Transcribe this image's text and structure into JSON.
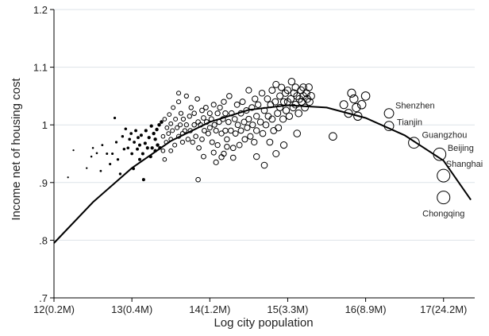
{
  "chart_data": {
    "type": "scatter",
    "title": "",
    "xlabel": "Log city population",
    "ylabel": "Income net of housing cost",
    "xlim": [
      12,
      17.4
    ],
    "ylim": [
      0.7,
      1.2
    ],
    "x_ticks": [
      {
        "value": 12,
        "label": "12(0.2M)"
      },
      {
        "value": 13,
        "label": "13(0.4M)"
      },
      {
        "value": 14,
        "label": "14(1.2M)"
      },
      {
        "value": 15,
        "label": "15(3.3M)"
      },
      {
        "value": 16,
        "label": "16(8.9M)"
      },
      {
        "value": 17,
        "label": "17(24.2M)"
      }
    ],
    "y_ticks": [
      {
        "value": 0.7,
        "label": ".7"
      },
      {
        "value": 0.8,
        "label": ".8"
      },
      {
        "value": 0.9,
        "label": ".9"
      },
      {
        "value": 1.0,
        "label": "1"
      },
      {
        "value": 1.1,
        "label": "1.1"
      },
      {
        "value": 1.2,
        "label": "1.2"
      }
    ],
    "grid": "horizontal",
    "marker_size": "circle size proportional to city population",
    "fit": {
      "type": "quadratic",
      "x_range": [
        12,
        17.35
      ],
      "points": [
        [
          12.0,
          0.795
        ],
        [
          12.5,
          0.866
        ],
        [
          13.0,
          0.925
        ],
        [
          13.5,
          0.972
        ],
        [
          14.0,
          1.005
        ],
        [
          14.5,
          1.026
        ],
        [
          15.0,
          1.034
        ],
        [
          15.5,
          1.03
        ],
        [
          16.0,
          1.012
        ],
        [
          16.5,
          0.982
        ],
        [
          17.0,
          0.938
        ],
        [
          17.35,
          0.87
        ]
      ]
    },
    "labeled_cities": [
      {
        "name": "Shenzhen",
        "x": 16.3,
        "y": 1.02
      },
      {
        "name": "Tianjin",
        "x": 16.3,
        "y": 0.998
      },
      {
        "name": "Guangzhou",
        "x": 16.62,
        "y": 0.969
      },
      {
        "name": "Beijing",
        "x": 16.95,
        "y": 0.949
      },
      {
        "name": "Shanghai",
        "x": 17.0,
        "y": 0.912
      },
      {
        "name": "Chongqing",
        "x": 17.0,
        "y": 0.874
      }
    ],
    "points": [
      [
        12.18,
        0.909
      ],
      [
        12.25,
        0.956
      ],
      [
        12.42,
        0.925
      ],
      [
        12.48,
        0.945
      ],
      [
        12.5,
        0.96
      ],
      [
        12.55,
        0.951
      ],
      [
        12.6,
        0.92
      ],
      [
        12.62,
        0.965
      ],
      [
        12.68,
        0.95
      ],
      [
        12.72,
        0.932
      ],
      [
        12.75,
        0.95
      ],
      [
        12.78,
        1.012
      ],
      [
        12.8,
        0.97
      ],
      [
        12.82,
        0.94
      ],
      [
        12.85,
        0.915
      ],
      [
        12.88,
        0.98
      ],
      [
        12.9,
        0.958
      ],
      [
        12.92,
        0.993
      ],
      [
        12.95,
        0.96
      ],
      [
        12.97,
        0.975
      ],
      [
        12.99,
        0.985
      ],
      [
        13.0,
        0.95
      ],
      [
        13.02,
        0.924
      ],
      [
        13.03,
        0.97
      ],
      [
        13.05,
        0.99
      ],
      [
        13.07,
        0.958
      ],
      [
        13.08,
        0.978
      ],
      [
        13.1,
        0.965
      ],
      [
        13.1,
        0.94
      ],
      [
        13.12,
        0.982
      ],
      [
        13.14,
        0.95
      ],
      [
        13.15,
        0.905
      ],
      [
        13.17,
        0.968
      ],
      [
        13.18,
        0.99
      ],
      [
        13.2,
        0.96
      ],
      [
        13.22,
        0.978
      ],
      [
        13.24,
        0.945
      ],
      [
        13.25,
        0.998
      ],
      [
        13.26,
        0.96
      ],
      [
        13.28,
        0.985
      ],
      [
        13.3,
        0.955
      ],
      [
        13.3,
        0.975
      ],
      [
        13.32,
        0.992
      ],
      [
        13.33,
        0.965
      ],
      [
        13.35,
        1.0
      ],
      [
        13.36,
        0.96
      ],
      [
        13.38,
        1.005
      ],
      [
        13.4,
        0.98
      ],
      [
        13.4,
        0.955
      ],
      [
        13.42,
        1.01
      ],
      [
        13.44,
        0.97
      ],
      [
        13.45,
        0.995
      ],
      [
        13.47,
        0.985
      ],
      [
        13.48,
        1.018
      ],
      [
        13.5,
        0.975
      ],
      [
        13.5,
        1.002
      ],
      [
        13.52,
        0.99
      ],
      [
        13.53,
        1.03
      ],
      [
        13.55,
        0.965
      ],
      [
        13.56,
        1.01
      ],
      [
        13.58,
        0.995
      ],
      [
        13.6,
        1.04
      ],
      [
        13.6,
        0.98
      ],
      [
        13.62,
        1.0
      ],
      [
        13.63,
        1.02
      ],
      [
        13.65,
        0.985
      ],
      [
        13.66,
        1.01
      ],
      [
        13.68,
        0.99
      ],
      [
        13.7,
        1.05
      ],
      [
        13.7,
        1.0
      ],
      [
        13.72,
        0.975
      ],
      [
        13.74,
        1.015
      ],
      [
        13.75,
        0.99
      ],
      [
        13.76,
        1.03
      ],
      [
        13.78,
        0.97
      ],
      [
        13.8,
        1.02
      ],
      [
        13.8,
        1.0
      ],
      [
        13.82,
        0.98
      ],
      [
        13.84,
        1.045
      ],
      [
        13.85,
        1.005
      ],
      [
        13.86,
        0.96
      ],
      [
        13.88,
        1.0
      ],
      [
        13.9,
        1.025
      ],
      [
        13.9,
        0.975
      ],
      [
        13.92,
        1.012
      ],
      [
        13.93,
        0.99
      ],
      [
        13.95,
        1.03
      ],
      [
        13.96,
        1.005
      ],
      [
        13.98,
        0.985
      ],
      [
        14.0,
        1.02
      ],
      [
        14.0,
        0.995
      ],
      [
        14.02,
        1.01
      ],
      [
        14.03,
        0.97
      ],
      [
        14.05,
        1.035
      ],
      [
        14.06,
        1.0
      ],
      [
        14.08,
        0.99
      ],
      [
        14.1,
        1.02
      ],
      [
        14.1,
        0.965
      ],
      [
        14.12,
        1.005
      ],
      [
        14.13,
        1.03
      ],
      [
        14.15,
        0.985
      ],
      [
        14.17,
        1.01
      ],
      [
        14.18,
        1.04
      ],
      [
        14.2,
        0.99
      ],
      [
        14.2,
        1.02
      ],
      [
        14.22,
        0.975
      ],
      [
        14.24,
        1.005
      ],
      [
        14.25,
        1.05
      ],
      [
        14.27,
        0.99
      ],
      [
        14.28,
        1.02
      ],
      [
        14.3,
        0.96
      ],
      [
        14.32,
        1.01
      ],
      [
        14.33,
        0.985
      ],
      [
        14.35,
        1.035
      ],
      [
        14.36,
        1.0
      ],
      [
        14.38,
        0.965
      ],
      [
        14.4,
        1.02
      ],
      [
        14.4,
        0.99
      ],
      [
        14.42,
        1.04
      ],
      [
        14.44,
        1.005
      ],
      [
        14.45,
        0.975
      ],
      [
        14.47,
        1.025
      ],
      [
        14.48,
        0.995
      ],
      [
        14.5,
        1.06
      ],
      [
        14.5,
        1.01
      ],
      [
        14.52,
        0.98
      ],
      [
        14.54,
        1.03
      ],
      [
        14.55,
        1.0
      ],
      [
        14.57,
        0.97
      ],
      [
        14.58,
        1.045
      ],
      [
        14.6,
        1.015
      ],
      [
        14.6,
        0.99
      ],
      [
        13.6,
        1.055
      ],
      [
        13.85,
        0.905
      ],
      [
        14.05,
        0.952
      ],
      [
        14.15,
        0.944
      ],
      [
        14.22,
        0.962
      ],
      [
        14.3,
        0.943
      ],
      [
        13.5,
        0.955
      ],
      [
        13.42,
        0.94
      ],
      [
        13.65,
        0.97
      ],
      [
        13.92,
        0.945
      ],
      [
        14.08,
        0.935
      ],
      [
        14.18,
        0.95
      ],
      [
        14.62,
        1.035
      ],
      [
        14.65,
        1.005
      ],
      [
        14.67,
        1.055
      ],
      [
        14.68,
        0.985
      ],
      [
        14.7,
        1.025
      ],
      [
        14.72,
        1.0
      ],
      [
        14.74,
        1.045
      ],
      [
        14.75,
        1.015
      ],
      [
        14.77,
        0.97
      ],
      [
        14.78,
        1.035
      ],
      [
        14.8,
        1.06
      ],
      [
        14.8,
        1.01
      ],
      [
        14.82,
        0.99
      ],
      [
        14.84,
        1.04
      ],
      [
        14.85,
        1.07
      ],
      [
        14.87,
        1.02
      ],
      [
        14.88,
        0.995
      ],
      [
        14.9,
        1.05
      ],
      [
        14.9,
        1.03
      ],
      [
        14.92,
        1.065
      ],
      [
        14.94,
        1.01
      ],
      [
        14.95,
        1.04
      ],
      [
        14.97,
        1.055
      ],
      [
        14.98,
        1.025
      ],
      [
        15.0,
        1.06
      ],
      [
        15.0,
        1.04
      ],
      [
        15.02,
        1.015
      ],
      [
        15.04,
        1.045
      ],
      [
        15.05,
        1.075
      ],
      [
        15.07,
        1.03
      ],
      [
        15.08,
        1.055
      ],
      [
        15.1,
        1.065
      ],
      [
        15.1,
        1.035
      ],
      [
        15.12,
        1.05
      ],
      [
        15.14,
        1.02
      ],
      [
        15.15,
        1.045
      ],
      [
        15.17,
        1.06
      ],
      [
        15.18,
        1.04
      ],
      [
        15.2,
        1.065
      ],
      [
        15.2,
        1.05
      ],
      [
        15.22,
        1.03
      ],
      [
        15.24,
        1.055
      ],
      [
        15.25,
        1.045
      ],
      [
        15.27,
        1.065
      ],
      [
        15.28,
        1.04
      ],
      [
        15.3,
        1.05
      ],
      [
        14.6,
        0.945
      ],
      [
        14.7,
        0.93
      ],
      [
        14.85,
        0.95
      ],
      [
        15.12,
        0.985
      ],
      [
        14.95,
        0.965
      ],
      [
        15.58,
        0.98
      ],
      [
        15.72,
        1.035
      ],
      [
        15.78,
        1.02
      ],
      [
        15.82,
        1.055
      ],
      [
        15.85,
        1.045
      ],
      [
        15.88,
        1.03
      ],
      [
        15.9,
        1.015
      ],
      [
        15.95,
        1.035
      ],
      [
        16.0,
        1.05
      ]
    ]
  }
}
